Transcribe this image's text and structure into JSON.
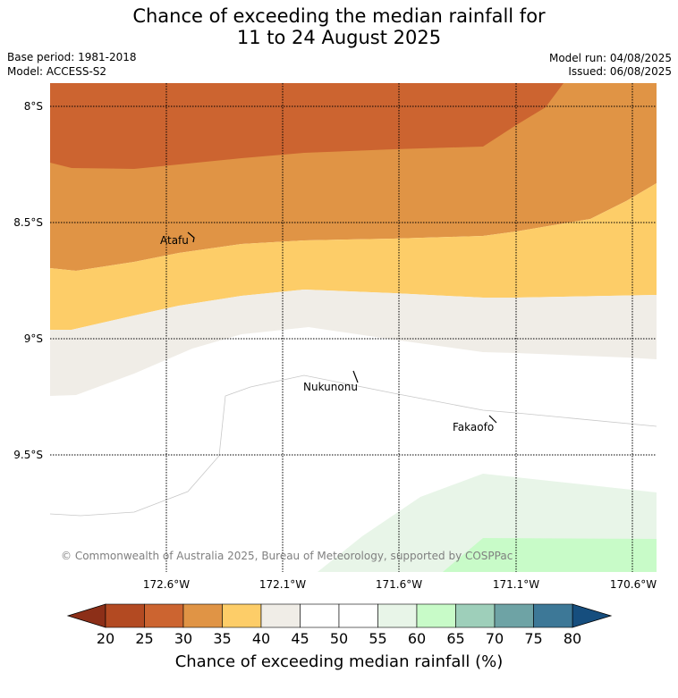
{
  "title_line1": "Chance of exceeding the median rainfall for",
  "title_line2": "11 to 24 August 2025",
  "base_period": "Base period: 1981-2018",
  "model": "Model: ACCESS-S2",
  "model_run": "Model run: 04/08/2025",
  "issued": "Issued: 06/08/2025",
  "copyright": "© Commonwealth of Australia 2025, Bureau of Meteorology, supported by COSPPac",
  "lat_labels": [
    "8°S",
    "8.5°S",
    "9°S",
    "9.5°S"
  ],
  "lon_labels": [
    "172.6°W",
    "172.1°W",
    "171.6°W",
    "171.1°W",
    "170.6°W"
  ],
  "places": [
    "Atafu",
    "Nukunonu",
    "Fakaofo"
  ],
  "colorbar": {
    "title": "Chance of exceeding median rainfall (%)",
    "ticks": [
      "20",
      "25",
      "30",
      "35",
      "40",
      "45",
      "50",
      "55",
      "60",
      "65",
      "70",
      "75",
      "80"
    ],
    "colors": [
      "#b34a22",
      "#cc6430",
      "#e09445",
      "#fdcd68",
      "#f0ede7",
      "#ffffff",
      "#ffffff",
      "#e8f5e8",
      "#c8fbc8",
      "#9ecfba",
      "#6ea3a5",
      "#3d7897"
    ],
    "under_color": "#8c2f18",
    "over_color": "#164e7e"
  }
}
